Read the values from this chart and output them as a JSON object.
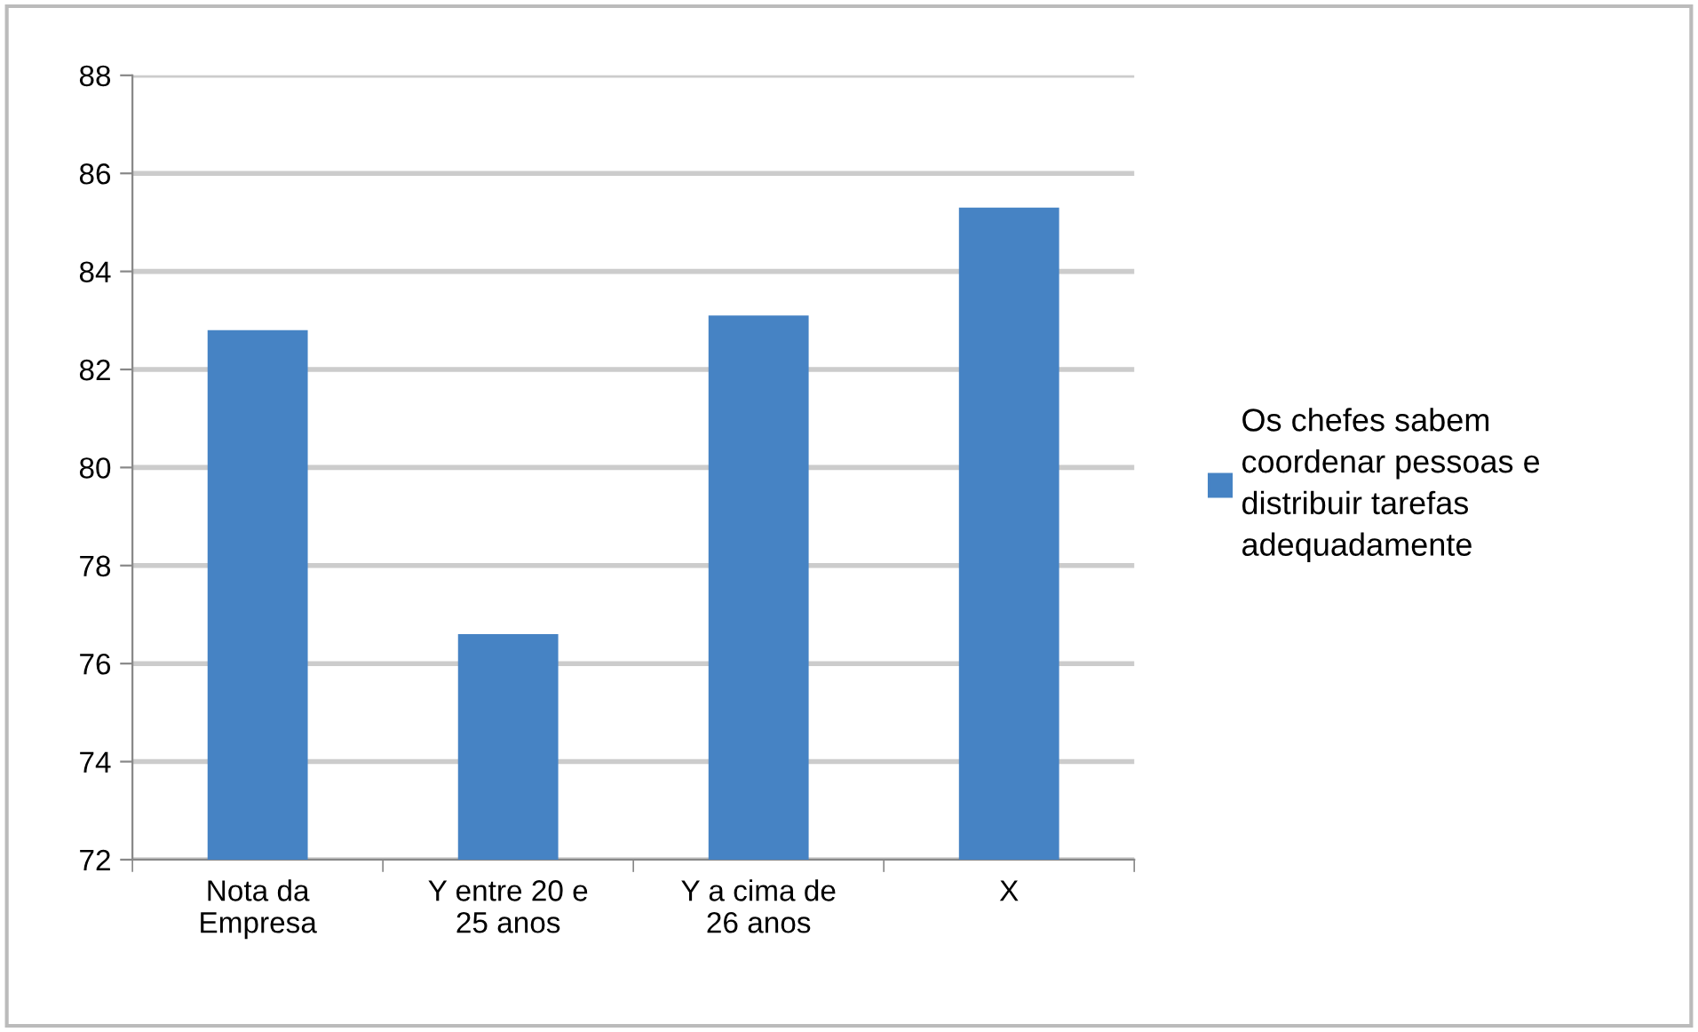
{
  "chart_data": {
    "type": "bar",
    "categories": [
      "Nota da\nEmpresa",
      "Y entre 20 e\n25 anos",
      "Y a cima de\n26 anos",
      "X"
    ],
    "series": [
      {
        "name": "Os chefes sabem\ncoordenar pessoas e\ndistribuir tarefas\nadequadamente",
        "color": "#4683c4",
        "values": [
          82.8,
          76.6,
          83.1,
          85.3
        ]
      }
    ],
    "ylim": [
      72,
      88
    ],
    "yticks": [
      72,
      74,
      76,
      78,
      80,
      82,
      84,
      86,
      88
    ],
    "grid": "y",
    "legend": "right"
  }
}
